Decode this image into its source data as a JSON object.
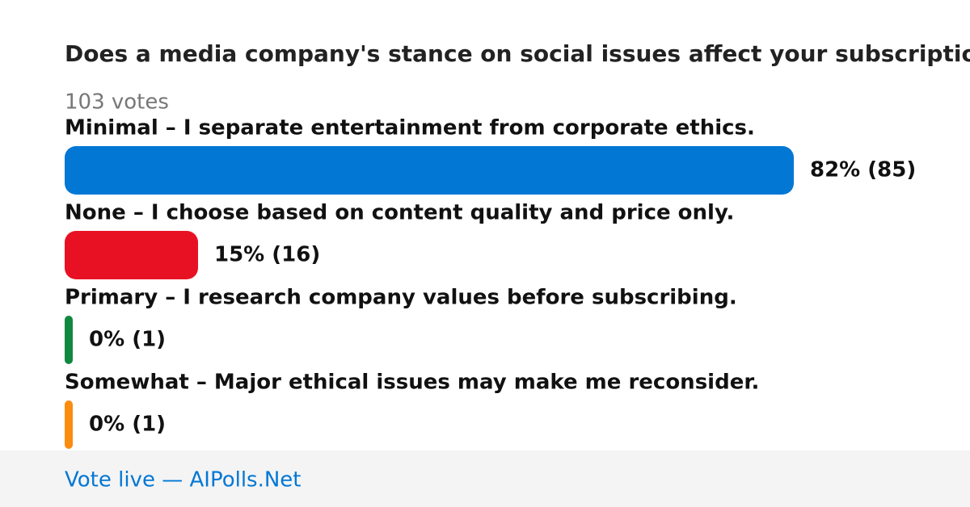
{
  "chart_data": {
    "type": "bar",
    "title": "Does a media company's stance on social issues affect your subscription choices?",
    "subtitle": "103 votes",
    "categories": [
      "Minimal – I separate entertainment from corporate ethics.",
      "None – I choose based on content quality and price only.",
      "Primary – I research company values before subscribing.",
      "Somewhat – Major ethical issues may make me reconsider."
    ],
    "values": [
      82,
      15,
      0,
      0
    ],
    "value_labels": [
      "82% (85)",
      "15% (16)",
      "0% (1)",
      "0% (1)"
    ],
    "colors": [
      "#0277d4",
      "#e81123",
      "#118840",
      "#fa8c10"
    ],
    "footer": "Vote live — AIPolls.Net"
  }
}
